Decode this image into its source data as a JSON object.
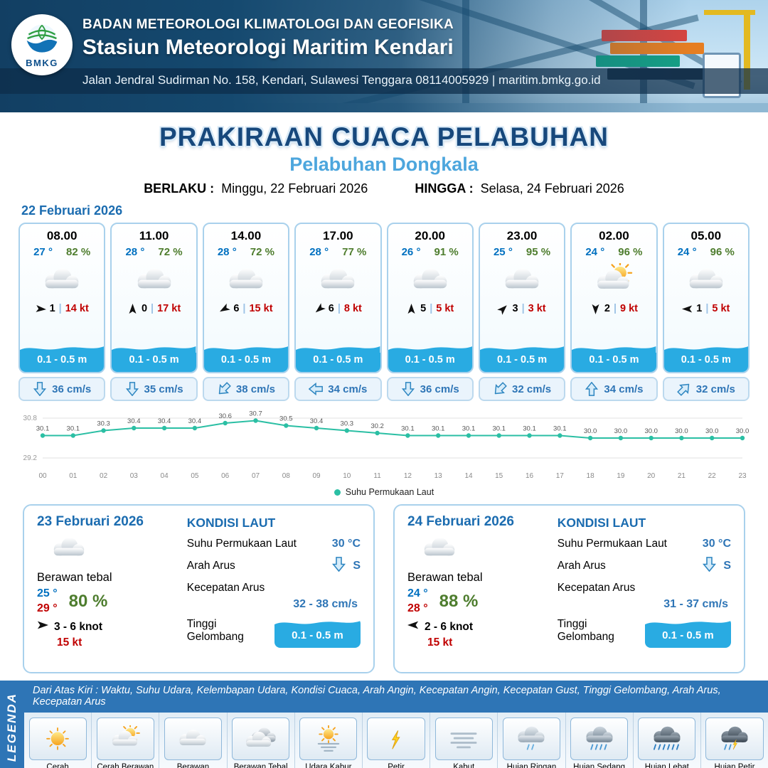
{
  "header": {
    "logo_label": "BMKG",
    "agency": "BADAN METEOROLOGI KLIMATOLOGI DAN GEOFISIKA",
    "station": "Stasiun Meteorologi Maritim Kendari",
    "address": "Jalan Jendral Sudirman No. 158, Kendari, Sulawesi Tenggara  08114005929 | maritim.bmkg.go.id"
  },
  "title": {
    "main": "PRAKIRAAN CUACA PELABUHAN",
    "port": "Pelabuhan Dongkala",
    "berlaku_label": "BERLAKU :",
    "berlaku_value": "Minggu, 22 Februari 2026",
    "hingga_label": "HINGGA :",
    "hingga_value": "Selasa, 24 Februari 2026"
  },
  "forecast_date": "22 Februari 2026",
  "forecast_cards": [
    {
      "time": "08.00",
      "temp": "27 °",
      "humidity": "82 %",
      "icon": "cloudy",
      "wind_dir_deg": 5,
      "wind_value": "1",
      "wind_gust": "14 kt",
      "wave": "0.1 - 0.5 m",
      "current_dir_deg": 0,
      "current_speed": "36 cm/s"
    },
    {
      "time": "11.00",
      "temp": "28 °",
      "humidity": "72 %",
      "icon": "cloudy",
      "wind_dir_deg": 270,
      "wind_value": "0",
      "wind_gust": "17 kt",
      "wave": "0.1 - 0.5 m",
      "current_dir_deg": 0,
      "current_speed": "35 cm/s"
    },
    {
      "time": "14.00",
      "temp": "28 °",
      "humidity": "72 %",
      "icon": "cloudy",
      "wind_dir_deg": 150,
      "wind_value": "6",
      "wind_gust": "15 kt",
      "wave": "0.1 - 0.5 m",
      "current_dir_deg": 45,
      "current_speed": "38 cm/s"
    },
    {
      "time": "17.00",
      "temp": "28 °",
      "humidity": "77 %",
      "icon": "cloudy",
      "wind_dir_deg": 140,
      "wind_value": "6",
      "wind_gust": "8 kt",
      "wave": "0.1 - 0.5 m",
      "current_dir_deg": 90,
      "current_speed": "34 cm/s"
    },
    {
      "time": "20.00",
      "temp": "26 °",
      "humidity": "91 %",
      "icon": "cloudy",
      "wind_dir_deg": 270,
      "wind_value": "5",
      "wind_gust": "5 kt",
      "wave": "0.1 - 0.5 m",
      "current_dir_deg": 0,
      "current_speed": "36 cm/s"
    },
    {
      "time": "23.00",
      "temp": "25 °",
      "humidity": "95 %",
      "icon": "cloudy",
      "wind_dir_deg": 315,
      "wind_value": "3",
      "wind_gust": "3 kt",
      "wave": "0.1 - 0.5 m",
      "current_dir_deg": 45,
      "current_speed": "32 cm/s"
    },
    {
      "time": "02.00",
      "temp": "24 °",
      "humidity": "96 %",
      "icon": "sun-cloud",
      "wind_dir_deg": 90,
      "wind_value": "2",
      "wind_gust": "9 kt",
      "wave": "0.1 - 0.5 m",
      "current_dir_deg": 180,
      "current_speed": "34 cm/s"
    },
    {
      "time": "05.00",
      "temp": "24 °",
      "humidity": "96 %",
      "icon": "cloudy",
      "wind_dir_deg": 180,
      "wind_value": "1",
      "wind_gust": "5 kt",
      "wave": "0.1 - 0.5 m",
      "current_dir_deg": 225,
      "current_speed": "32 cm/s"
    }
  ],
  "chart_data": {
    "type": "line",
    "series_label": "Suhu Permukaan Laut",
    "x": [
      "00",
      "01",
      "02",
      "03",
      "04",
      "05",
      "06",
      "07",
      "08",
      "09",
      "10",
      "11",
      "12",
      "13",
      "14",
      "15",
      "16",
      "17",
      "18",
      "19",
      "20",
      "21",
      "22",
      "23"
    ],
    "values": [
      30.1,
      30.1,
      30.3,
      30.4,
      30.4,
      30.4,
      30.6,
      30.7,
      30.5,
      30.4,
      30.3,
      30.2,
      30.1,
      30.1,
      30.1,
      30.1,
      30.1,
      30.1,
      30.0,
      30.0,
      30.0,
      30.0,
      30.0,
      30.0
    ],
    "ylim": [
      29.2,
      30.8
    ],
    "y_ticks": [
      "30.8",
      "29.2"
    ],
    "color": "#2bbfa4",
    "grid": "minimal",
    "legend_position": "bottom"
  },
  "summary_cards": [
    {
      "date": "23 Februari 2026",
      "condition": "Berawan tebal",
      "icon": "cloudy",
      "temp_min": "25 °",
      "temp_max": "29 °",
      "humidity": "80 %",
      "wind_dir_deg": 0,
      "wind_range": "3 - 6 knot",
      "wind_gust": "15 kt",
      "sea": {
        "title": "KONDISI LAUT",
        "sst_label": "Suhu Permukaan Laut",
        "sst_value": "30 °C",
        "current_dir_label": "Arah Arus",
        "current_dir_deg": 0,
        "current_dir_value": "S",
        "current_speed_label": "Kecepatan Arus",
        "current_speed_value": "32 - 38 cm/s",
        "wave_label": "Tinggi Gelombang",
        "wave_value": "0.1 - 0.5 m"
      }
    },
    {
      "date": "24 Februari 2026",
      "condition": "Berawan tebal",
      "icon": "cloudy",
      "temp_min": "24 °",
      "temp_max": "28 °",
      "humidity": "88 %",
      "wind_dir_deg": 180,
      "wind_range": "2 - 6 knot",
      "wind_gust": "15 kt",
      "sea": {
        "title": "KONDISI LAUT",
        "sst_label": "Suhu Permukaan Laut",
        "sst_value": "30 °C",
        "current_dir_label": "Arah Arus",
        "current_dir_deg": 0,
        "current_dir_value": "S",
        "current_speed_label": "Kecepatan Arus",
        "current_speed_value": "31 - 37 cm/s",
        "wave_label": "Tinggi Gelombang",
        "wave_value": "0.1 - 0.5 m"
      }
    }
  ],
  "legend": {
    "side_label": "LEGENDA",
    "banner": "Dari Atas Kiri : Waktu, Suhu Udara, Kelembapan Udara, Kondisi Cuaca, Arah Angin, Kecepatan Angin, Kecepatan Gust, Tinggi Gelombang, Arah Arus, Kecepatan Arus",
    "items": [
      {
        "label": "Cerah",
        "icon": "sunny"
      },
      {
        "label": "Cerah Berawan",
        "icon": "sun-cloud"
      },
      {
        "label": "Berawan",
        "icon": "cloudy"
      },
      {
        "label": "Berawan Tebal",
        "icon": "cloud-dark"
      },
      {
        "label": "Udara Kabur",
        "icon": "haze"
      },
      {
        "label": "Petir",
        "icon": "lightning"
      },
      {
        "label": "Kabut",
        "icon": "fog"
      },
      {
        "label": "Hujan Ringan",
        "icon": "rain-light"
      },
      {
        "label": "Hujan Sedang",
        "icon": "rain-medium"
      },
      {
        "label": "Hujan Lebat",
        "icon": "rain-heavy"
      },
      {
        "label": "Hujan Petir",
        "icon": "rain-lightning"
      }
    ]
  },
  "colors": {
    "accent_blue": "#1b6cb0",
    "temp_blue": "#0070c0",
    "humidity_green": "#4e7d2e",
    "gust_red": "#c00000",
    "wave_blue": "#29abe2",
    "banner_blue": "#2e75b6",
    "line_teal": "#2bbfa4"
  }
}
